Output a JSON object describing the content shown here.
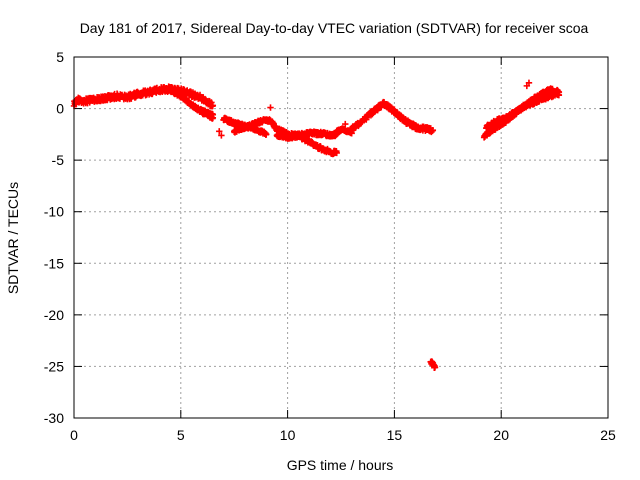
{
  "chart_data": {
    "type": "scatter",
    "title": "Day 181 of 2017, Sidereal Day-to-day VTEC variation (SDTVAR) for receiver scoa",
    "xlabel": "GPS time / hours",
    "ylabel": "SDTVAR / TECUs",
    "xlim": [
      0,
      25
    ],
    "ylim": [
      -30,
      5
    ],
    "xticks": [
      0,
      5,
      10,
      15,
      20,
      25
    ],
    "yticks": [
      5,
      0,
      -5,
      -10,
      -15,
      -20,
      -25,
      -30
    ],
    "grid": true,
    "marker": "+",
    "series": [
      {
        "name": "SDTVAR",
        "color": "#ff0000",
        "bands": [
          {
            "x": [
              0.0,
              0.2,
              0.5,
              1.0,
              1.5,
              2.0,
              2.5,
              3.0,
              3.5,
              4.0,
              4.5,
              5.0,
              5.5,
              6.0,
              6.3,
              6.5
            ],
            "y": [
              0.5,
              0.8,
              0.7,
              0.9,
              1.0,
              1.2,
              1.1,
              1.4,
              1.6,
              1.8,
              1.9,
              1.7,
              1.4,
              1.0,
              0.6,
              0.3
            ],
            "spread": 0.5
          },
          {
            "x": [
              4.5,
              5.0,
              5.5,
              6.0,
              6.5
            ],
            "y": [
              1.8,
              1.2,
              0.4,
              -0.4,
              -0.9
            ],
            "spread": 0.3
          },
          {
            "x": [
              5.5,
              6.0,
              6.5
            ],
            "y": [
              0.3,
              -0.2,
              -0.6
            ],
            "spread": 0.2
          },
          {
            "x": [
              7.0,
              7.5,
              8.0,
              8.5,
              9.0
            ],
            "y": [
              -1.0,
              -1.4,
              -1.7,
              -2.0,
              -2.5
            ],
            "spread": 0.3
          },
          {
            "x": [
              7.5,
              8.0,
              8.5,
              9.0,
              9.2
            ],
            "y": [
              -2.2,
              -1.8,
              -1.4,
              -1.1,
              -1.2
            ],
            "spread": 0.3
          },
          {
            "x": [
              9.2,
              9.5,
              10.0,
              10.5,
              11.0,
              11.5,
              12.0,
              12.3
            ],
            "y": [
              -1.2,
              -2.0,
              -2.5,
              -2.6,
              -2.4,
              -2.4,
              -2.6,
              -2.5
            ],
            "spread": 0.35
          },
          {
            "x": [
              9.5,
              10.0,
              10.5,
              11.0
            ],
            "y": [
              -2.6,
              -2.8,
              -2.7,
              -2.5
            ],
            "spread": 0.25
          },
          {
            "x": [
              10.5,
              11.0,
              11.5,
              12.0,
              12.3
            ],
            "y": [
              -2.6,
              -3.2,
              -3.8,
              -4.2,
              -4.3
            ],
            "spread": 0.35
          },
          {
            "x": [
              12.3,
              12.6,
              13.0
            ],
            "y": [
              -2.2,
              -2.0,
              -2.4
            ],
            "spread": 0.2
          },
          {
            "x": [
              13.0,
              13.5,
              14.0,
              14.5,
              15.0,
              15.5,
              16.0,
              16.5,
              16.8
            ],
            "y": [
              -2.0,
              -1.2,
              -0.3,
              0.5,
              -0.3,
              -1.2,
              -1.8,
              -2.0,
              -2.1
            ],
            "spread": 0.4
          },
          {
            "x": [
              16.7,
              16.8,
              16.9
            ],
            "y": [
              -24.5,
              -24.8,
              -25.1
            ],
            "spread": 0.3
          },
          {
            "x": [
              19.2,
              19.5,
              20.0,
              20.5,
              21.0,
              21.5,
              22.0,
              22.5,
              22.7
            ],
            "y": [
              -2.6,
              -2.2,
              -1.5,
              -0.7,
              0.1,
              0.6,
              1.0,
              1.4,
              1.3
            ],
            "spread": 0.4
          },
          {
            "x": [
              19.3,
              19.8,
              20.3,
              20.8,
              21.3,
              21.8,
              22.3,
              22.7
            ],
            "y": [
              -1.8,
              -1.2,
              -0.8,
              -0.2,
              0.6,
              1.3,
              1.8,
              1.6
            ],
            "spread": 0.35
          }
        ],
        "isolated_points": [
          {
            "x": 6.8,
            "y": -2.2
          },
          {
            "x": 6.9,
            "y": -2.6
          },
          {
            "x": 9.2,
            "y": 0.1
          },
          {
            "x": 12.7,
            "y": -1.5
          },
          {
            "x": 21.2,
            "y": 2.2
          },
          {
            "x": 21.3,
            "y": 2.5
          }
        ]
      }
    ]
  }
}
